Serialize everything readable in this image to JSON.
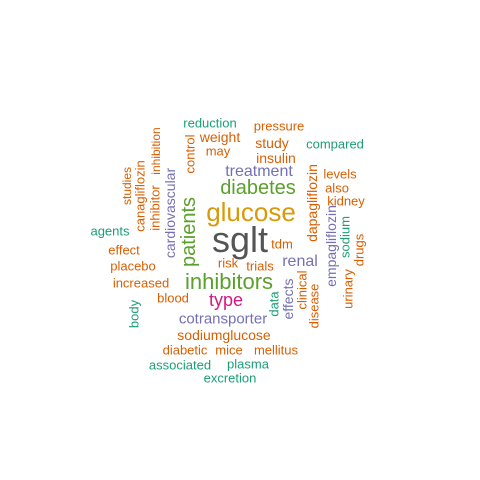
{
  "words": [
    {
      "text": "sglt",
      "color": "#555555"
    },
    {
      "text": "glucose",
      "color": "#d89a0b"
    },
    {
      "text": "inhibitors",
      "color": "#5aa02c"
    },
    {
      "text": "diabetes",
      "color": "#5aa02c"
    },
    {
      "text": "patients",
      "color": "#5aa02c"
    },
    {
      "text": "type",
      "color": "#d6187e"
    },
    {
      "text": "treatment",
      "color": "#7570b3"
    },
    {
      "text": "renal",
      "color": "#7570b3"
    },
    {
      "text": "cotransporter",
      "color": "#7570b3"
    },
    {
      "text": "cardiovascular",
      "color": "#7570b3"
    },
    {
      "text": "empagliflozin",
      "color": "#7570b3"
    },
    {
      "text": "effects",
      "color": "#7570b3"
    },
    {
      "text": "insulin",
      "color": "#d95f02"
    },
    {
      "text": "dapagliflozin",
      "color": "#d95f02"
    },
    {
      "text": "sodiumglucose",
      "color": "#d95f02"
    },
    {
      "text": "weight",
      "color": "#d95f02"
    },
    {
      "text": "study",
      "color": "#d95f02"
    },
    {
      "text": "pressure",
      "color": "#d95f02"
    },
    {
      "text": "may",
      "color": "#d95f02"
    },
    {
      "text": "control",
      "color": "#d95f02"
    },
    {
      "text": "levels",
      "color": "#d95f02"
    },
    {
      "text": "also",
      "color": "#d95f02"
    },
    {
      "text": "kidney",
      "color": "#d95f02"
    },
    {
      "text": "tdm",
      "color": "#d95f02"
    },
    {
      "text": "risk",
      "color": "#d95f02"
    },
    {
      "text": "trials",
      "color": "#d95f02"
    },
    {
      "text": "blood",
      "color": "#d95f02"
    },
    {
      "text": "increased",
      "color": "#d95f02"
    },
    {
      "text": "placebo",
      "color": "#d95f02"
    },
    {
      "text": "effect",
      "color": "#d95f02"
    },
    {
      "text": "inhibitor",
      "color": "#d95f02"
    },
    {
      "text": "canagliflozin",
      "color": "#d95f02"
    },
    {
      "text": "inhibition",
      "color": "#d95f02"
    },
    {
      "text": "studies",
      "color": "#d95f02"
    },
    {
      "text": "clinical",
      "color": "#d95f02"
    },
    {
      "text": "disease",
      "color": "#d95f02"
    },
    {
      "text": "urinary",
      "color": "#d95f02"
    },
    {
      "text": "drugs",
      "color": "#d95f02"
    },
    {
      "text": "diabetic",
      "color": "#d95f02"
    },
    {
      "text": "mice",
      "color": "#d95f02"
    },
    {
      "text": "mellitus",
      "color": "#d95f02"
    },
    {
      "text": "reduction",
      "color": "#1b9e77"
    },
    {
      "text": "compared",
      "color": "#1b9e77"
    },
    {
      "text": "agents",
      "color": "#1b9e77"
    },
    {
      "text": "sodium",
      "color": "#1b9e77"
    },
    {
      "text": "data",
      "color": "#1b9e77"
    },
    {
      "text": "body",
      "color": "#1b9e77"
    },
    {
      "text": "associated",
      "color": "#1b9e77"
    },
    {
      "text": "plasma",
      "color": "#1b9e77"
    },
    {
      "text": "excretion",
      "color": "#1b9e77"
    }
  ]
}
